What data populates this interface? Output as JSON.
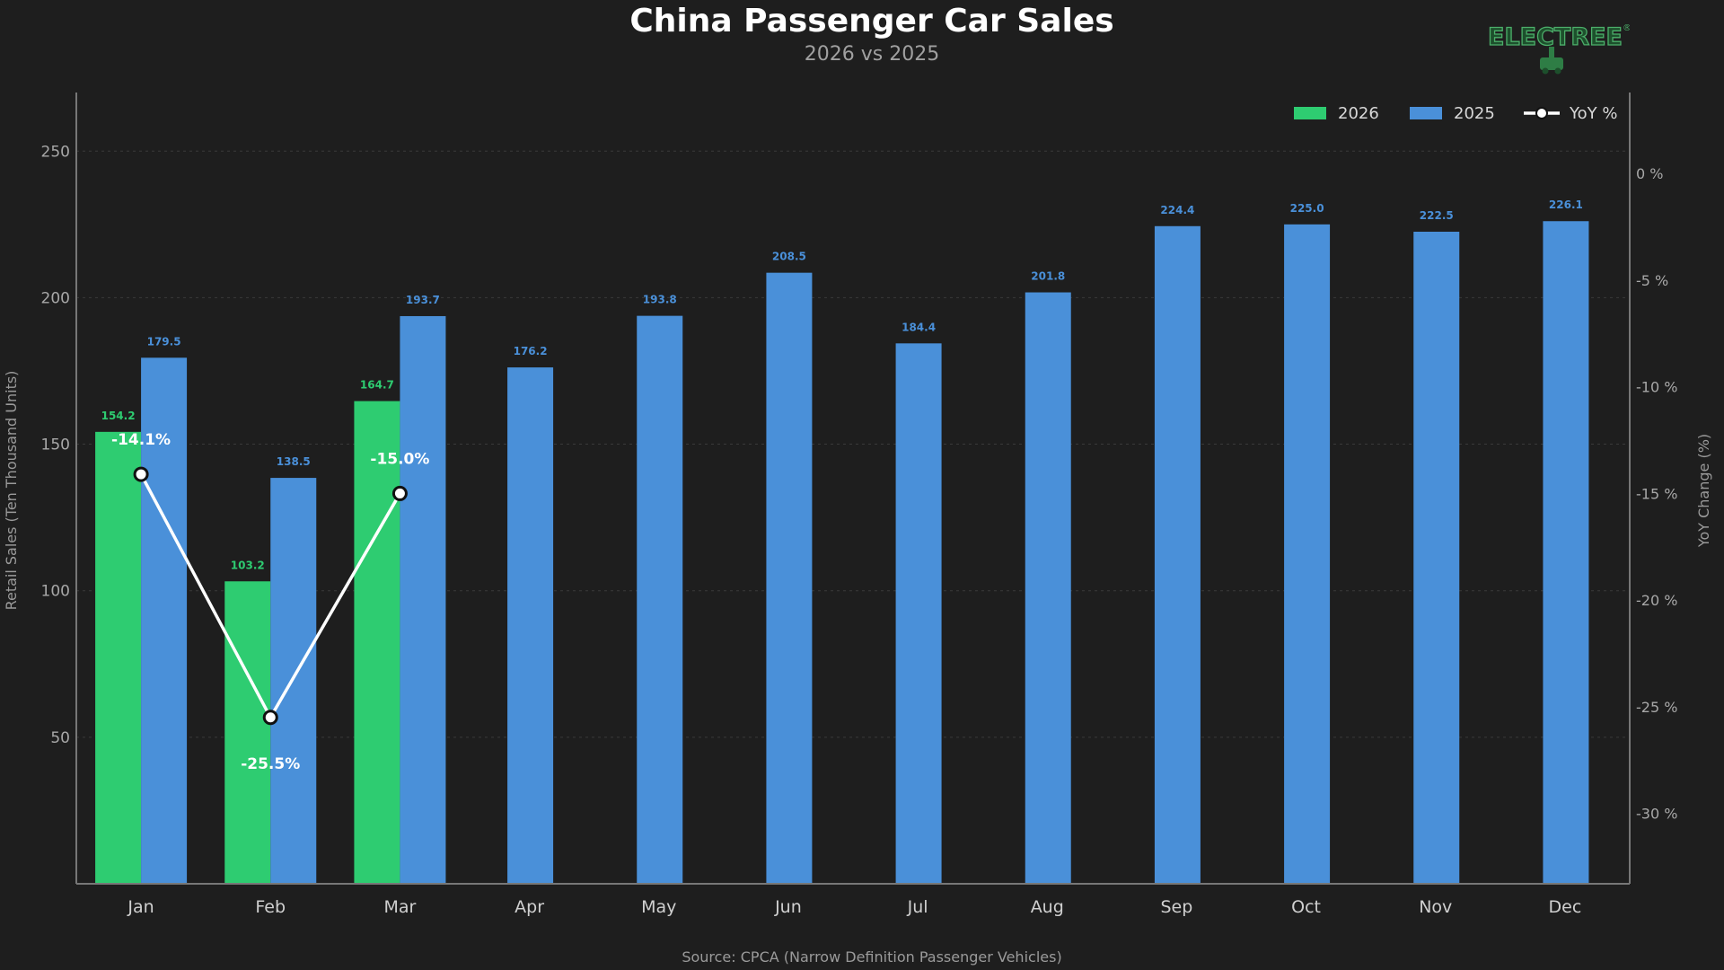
{
  "logo": {
    "text": "ELECTREE",
    "reg": "®"
  },
  "chart_data": {
    "type": "bar",
    "title": "China Passenger Car Sales",
    "subtitle": "2026 vs 2025",
    "source": "Source: CPCA  (Narrow Definition Passenger Vehicles)",
    "categories": [
      "Jan",
      "Feb",
      "Mar",
      "Apr",
      "May",
      "Jun",
      "Jul",
      "Aug",
      "Sep",
      "Oct",
      "Nov",
      "Dec"
    ],
    "series": [
      {
        "name": "2026",
        "color": "#2ecc71",
        "values": [
          154.2,
          103.2,
          164.7,
          null,
          null,
          null,
          null,
          null,
          null,
          null,
          null,
          null
        ]
      },
      {
        "name": "2025",
        "color": "#4a90d9",
        "values": [
          179.5,
          138.5,
          193.7,
          176.2,
          193.8,
          208.5,
          184.4,
          201.8,
          224.4,
          225.0,
          222.5,
          226.1
        ]
      }
    ],
    "line_series": {
      "name": "YoY %",
      "color": "#ffffff",
      "values": [
        -14.1,
        -25.5,
        -15.0
      ],
      "labels": [
        "-14.1%",
        "-25.5%",
        "-15.0%"
      ]
    },
    "ylabel": "Retail Sales (Ten Thousand Units)",
    "ylim": [
      0,
      270
    ],
    "yticks": [
      50,
      100,
      150,
      200,
      250
    ],
    "y2label": "YoY Change (%)",
    "y2lim": [
      -33.3,
      3.8
    ],
    "y2ticks": [
      0,
      -5,
      -10,
      -15,
      -20,
      -25,
      -30
    ],
    "y2ticklabels": [
      "0 %",
      "-5 %",
      "-10 %",
      "-15 %",
      "-20 %",
      "-25 %",
      "-30 %"
    ],
    "grid": true,
    "legend": "top-right",
    "background": "#1e1e1e"
  }
}
